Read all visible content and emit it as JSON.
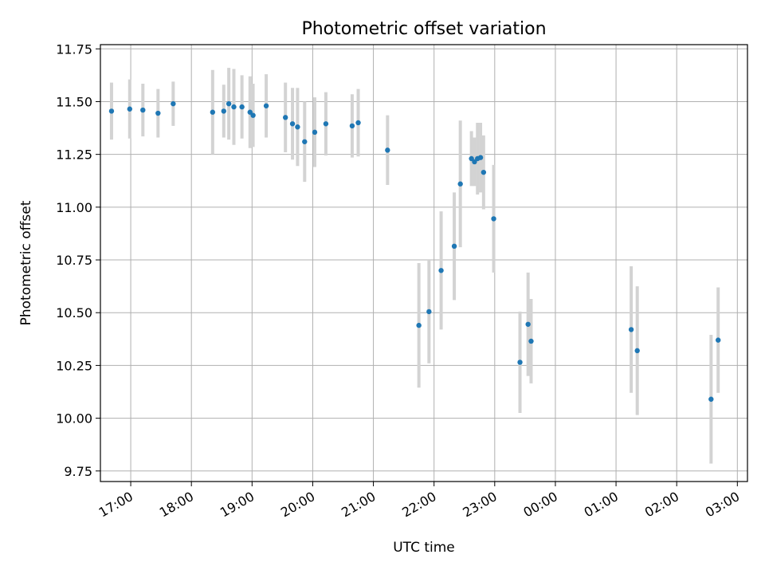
{
  "chart_data": {
    "type": "scatter",
    "title": "Photometric offset variation",
    "xlabel": "UTC time",
    "ylabel": "Photometric offset",
    "grid": true,
    "ylim": [
      9.7,
      11.77
    ],
    "xlim": [
      "16:30",
      "03:10"
    ],
    "x_ticks": [
      "17:00",
      "18:00",
      "19:00",
      "20:00",
      "21:00",
      "22:00",
      "23:00",
      "00:00",
      "01:00",
      "02:00",
      "03:00"
    ],
    "y_ticks": [
      "9.75",
      "10.00",
      "10.25",
      "10.50",
      "10.75",
      "11.00",
      "11.25",
      "11.50",
      "11.75"
    ],
    "point_color": "#1f77b4",
    "errorbar_color": "#d3d3d3",
    "series": [
      {
        "points": [
          {
            "t": "16:41",
            "y": 11.455,
            "err": 0.135
          },
          {
            "t": "16:59",
            "y": 11.465,
            "err": 0.14
          },
          {
            "t": "17:12",
            "y": 11.46,
            "err": 0.125
          },
          {
            "t": "17:27",
            "y": 11.445,
            "err": 0.115
          },
          {
            "t": "17:42",
            "y": 11.49,
            "err": 0.105
          },
          {
            "t": "18:21",
            "y": 11.45,
            "err": 0.2
          },
          {
            "t": "18:32",
            "y": 11.455,
            "err": 0.125
          },
          {
            "t": "18:37",
            "y": 11.49,
            "err": 0.17
          },
          {
            "t": "18:42",
            "y": 11.475,
            "err": 0.18
          },
          {
            "t": "18:50",
            "y": 11.475,
            "err": 0.15
          },
          {
            "t": "18:58",
            "y": 11.45,
            "err": 0.17
          },
          {
            "t": "19:01",
            "y": 11.435,
            "err": 0.15
          },
          {
            "t": "19:14",
            "y": 11.48,
            "err": 0.15
          },
          {
            "t": "19:33",
            "y": 11.425,
            "err": 0.165
          },
          {
            "t": "19:40",
            "y": 11.395,
            "err": 0.17
          },
          {
            "t": "19:45",
            "y": 11.38,
            "err": 0.185
          },
          {
            "t": "19:52",
            "y": 11.31,
            "err": 0.19
          },
          {
            "t": "20:02",
            "y": 11.355,
            "err": 0.165
          },
          {
            "t": "20:13",
            "y": 11.395,
            "err": 0.15
          },
          {
            "t": "20:39",
            "y": 11.385,
            "err": 0.15
          },
          {
            "t": "20:45",
            "y": 11.4,
            "err": 0.16
          },
          {
            "t": "21:14",
            "y": 11.27,
            "err": 0.165
          },
          {
            "t": "21:45",
            "y": 10.44,
            "err": 0.295
          },
          {
            "t": "21:55",
            "y": 10.505,
            "err": 0.245
          },
          {
            "t": "22:07",
            "y": 10.7,
            "err": 0.28
          },
          {
            "t": "22:20",
            "y": 10.815,
            "err": 0.255
          },
          {
            "t": "22:26",
            "y": 11.11,
            "err": 0.3
          },
          {
            "t": "22:37",
            "y": 11.23,
            "err": 0.13
          },
          {
            "t": "22:40",
            "y": 11.215,
            "err": 0.115
          },
          {
            "t": "22:43",
            "y": 11.23,
            "err": 0.17
          },
          {
            "t": "22:46",
            "y": 11.235,
            "err": 0.165
          },
          {
            "t": "22:49",
            "y": 11.165,
            "err": 0.175
          },
          {
            "t": "22:59",
            "y": 10.945,
            "err": 0.255
          },
          {
            "t": "23:25",
            "y": 10.265,
            "err": 0.24
          },
          {
            "t": "23:33",
            "y": 10.445,
            "err": 0.245
          },
          {
            "t": "23:36",
            "y": 10.365,
            "err": 0.2
          },
          {
            "t": "01:15",
            "y": 10.42,
            "err": 0.3
          },
          {
            "t": "01:21",
            "y": 10.32,
            "err": 0.305
          },
          {
            "t": "02:34",
            "y": 10.09,
            "err": 0.305
          },
          {
            "t": "02:41",
            "y": 10.37,
            "err": 0.25
          }
        ]
      }
    ]
  }
}
